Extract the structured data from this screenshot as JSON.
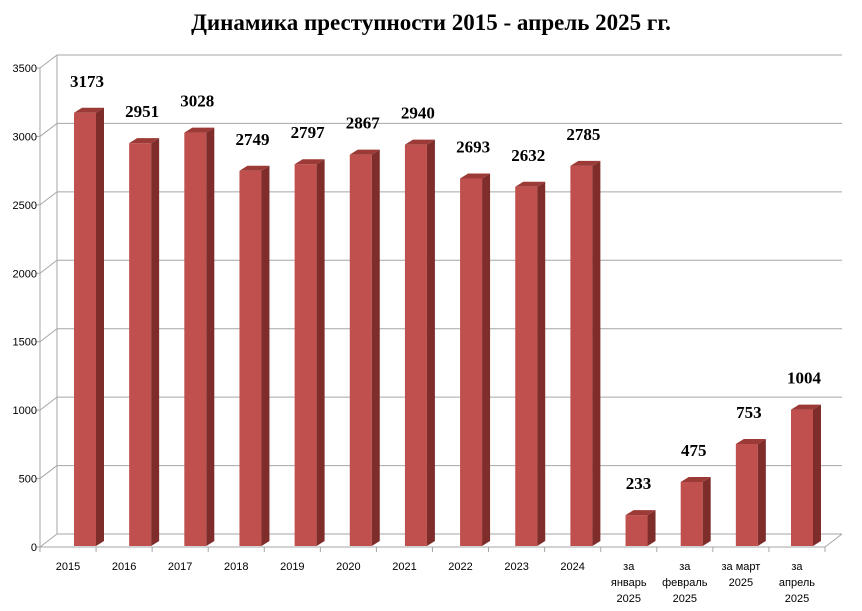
{
  "chart_data": {
    "type": "bar",
    "title": "Динамика преступности 2015 - апрель 2025 гг.",
    "xlabel": "",
    "ylabel": "",
    "ylim": [
      0,
      3500
    ],
    "yticks": [
      0,
      500,
      1000,
      1500,
      2000,
      2500,
      3000,
      3500
    ],
    "grid": true,
    "legend": "none",
    "categories": [
      "2015",
      "2016",
      "2017",
      "2018",
      "2019",
      "2020",
      "2021",
      "2022",
      "2023",
      "2024",
      "за январь 2025",
      "за февраль 2025",
      "за март 2025",
      "за апрель 2025"
    ],
    "category_lines": [
      [
        "2015"
      ],
      [
        "2016"
      ],
      [
        "2017"
      ],
      [
        "2018"
      ],
      [
        "2019"
      ],
      [
        "2020"
      ],
      [
        "2021"
      ],
      [
        "2022"
      ],
      [
        "2023"
      ],
      [
        "2024"
      ],
      [
        "за",
        "январь",
        "2025"
      ],
      [
        "за",
        "февраль",
        "2025"
      ],
      [
        "за март",
        "2025"
      ],
      [
        "за",
        "апрель",
        "2025"
      ]
    ],
    "values": [
      3173,
      2951,
      3028,
      2749,
      2797,
      2867,
      2940,
      2693,
      2632,
      2785,
      233,
      475,
      753,
      1004
    ],
    "colors": {
      "front": "#c0504d",
      "side": "#7f2d2b",
      "top": "#9b3a37",
      "grid": "#a6a6a6"
    }
  }
}
